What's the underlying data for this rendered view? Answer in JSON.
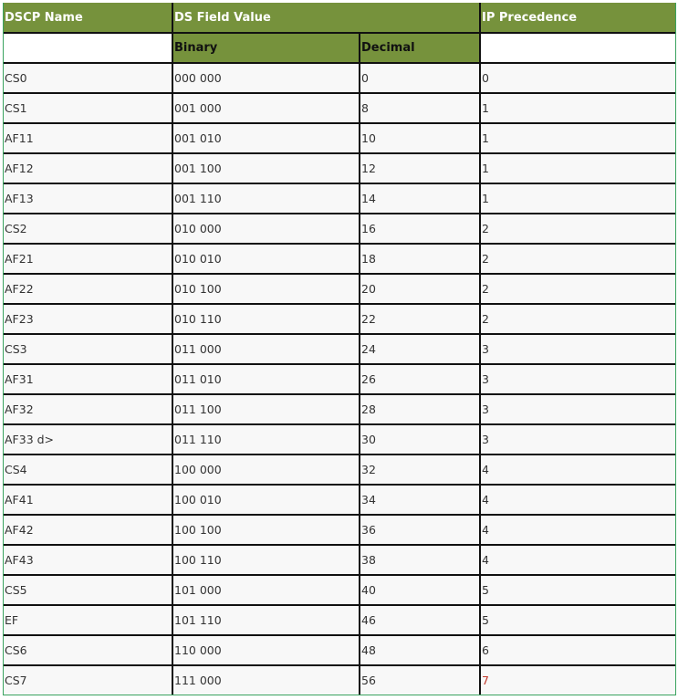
{
  "headers": {
    "dscp_name": "DSCP Name",
    "ds_field_value": "DS Field Value",
    "ip_precedence": "IP Precedence",
    "binary": "Binary",
    "decimal": "Decimal"
  },
  "header_color": "#76923c",
  "rows": [
    {
      "name": "CS0",
      "binary": "000 000",
      "decimal": "0",
      "precedence": "0"
    },
    {
      "name": "CS1",
      "binary": "001 000",
      "decimal": "8",
      "precedence": "1"
    },
    {
      "name": "AF11",
      "binary": "001 010",
      "decimal": "10",
      "precedence": "1"
    },
    {
      "name": "AF12",
      "binary": "001 100",
      "decimal": "12",
      "precedence": "1"
    },
    {
      "name": "AF13",
      "binary": "001 110",
      "decimal": "14",
      "precedence": "1"
    },
    {
      "name": "CS2",
      "binary": "010 000",
      "decimal": "16",
      "precedence": "2"
    },
    {
      "name": "AF21",
      "binary": "010 010",
      "decimal": "18",
      "precedence": "2"
    },
    {
      "name": "AF22",
      "binary": "010 100",
      "decimal": "20",
      "precedence": "2"
    },
    {
      "name": "AF23",
      "binary": "010 110",
      "decimal": "22",
      "precedence": "2"
    },
    {
      "name": "CS3",
      "binary": "011 000",
      "decimal": "24",
      "precedence": "3"
    },
    {
      "name": "AF31",
      "binary": "011 010",
      "decimal": "26",
      "precedence": "3"
    },
    {
      "name": "AF32",
      "binary": "011 100",
      "decimal": "28",
      "precedence": "3"
    },
    {
      "name": "AF33 d>",
      "binary": "011 110",
      "decimal": "30",
      "precedence": "3"
    },
    {
      "name": "CS4",
      "binary": "100 000",
      "decimal": "32",
      "precedence": "4"
    },
    {
      "name": "AF41",
      "binary": "100 010",
      "decimal": "34",
      "precedence": "4"
    },
    {
      "name": "AF42",
      "binary": "100 100",
      "decimal": "36",
      "precedence": "4"
    },
    {
      "name": "AF43",
      "binary": "100 110",
      "decimal": "38",
      "precedence": "4"
    },
    {
      "name": "CS5",
      "binary": "101 000",
      "decimal": "40",
      "precedence": "5"
    },
    {
      "name": "EF",
      "binary": "101 110",
      "decimal": "46",
      "precedence": "5"
    },
    {
      "name": "CS6",
      "binary": "110 000",
      "decimal": "48",
      "precedence": "6"
    },
    {
      "name": "CS7",
      "binary": "111 000",
      "decimal": "56",
      "precedence": "7"
    }
  ]
}
